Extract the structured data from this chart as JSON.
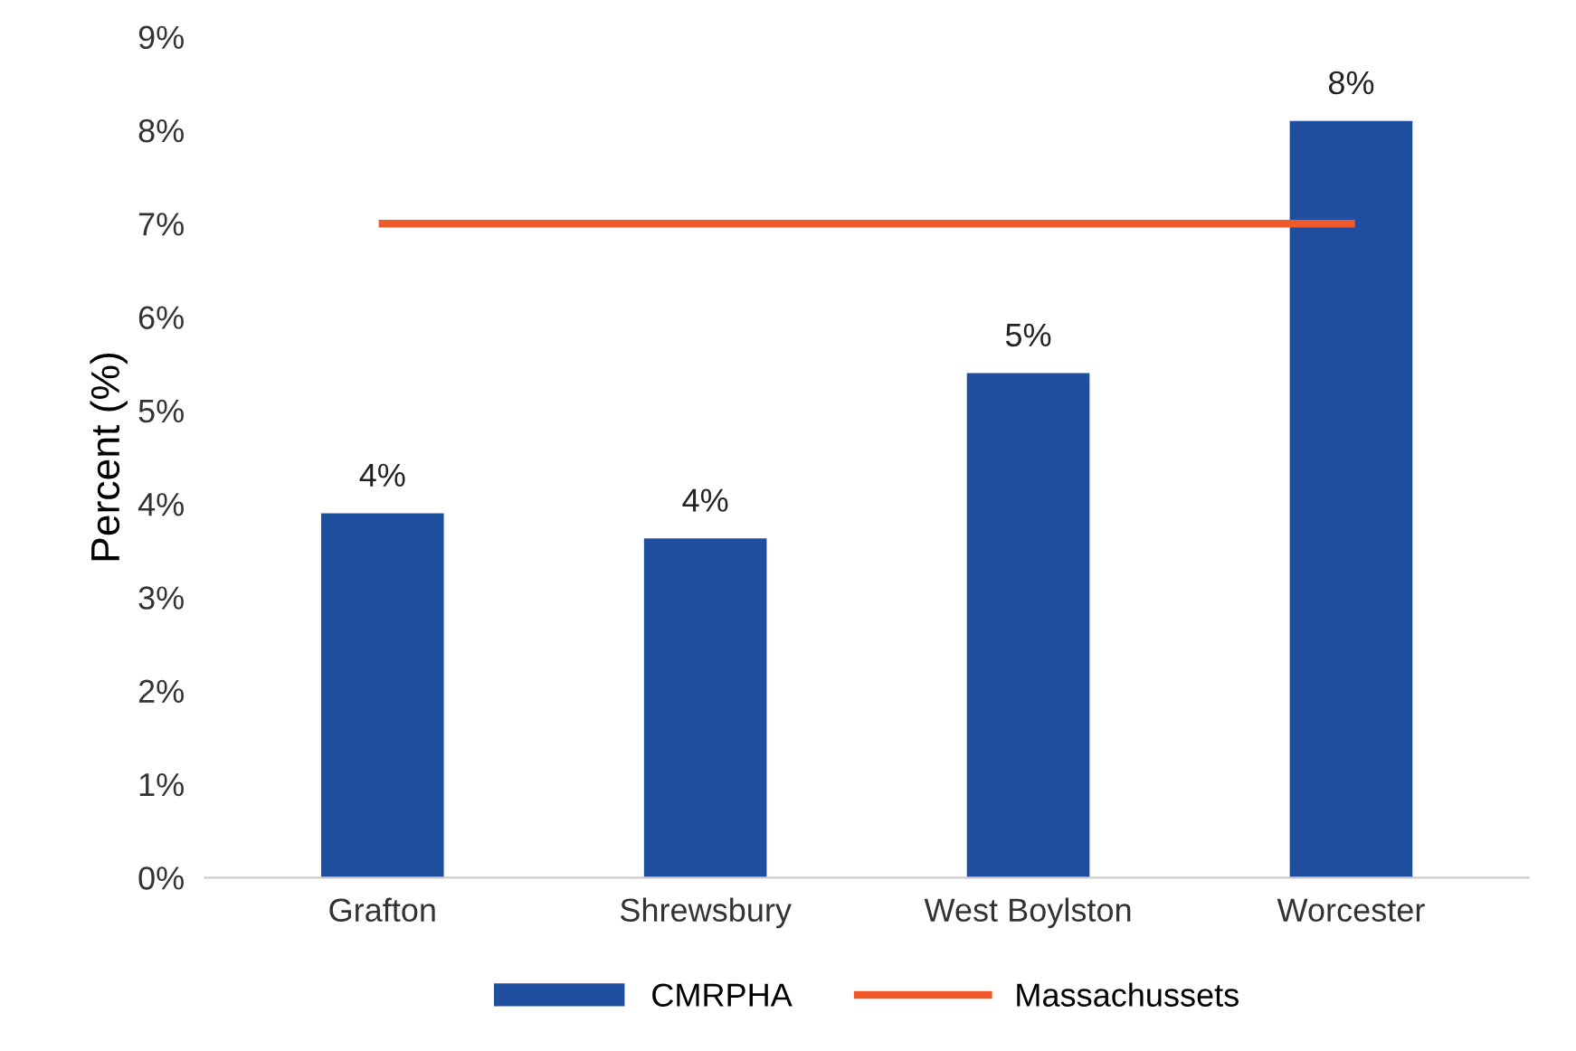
{
  "chart_data": {
    "type": "bar",
    "ylabel": "Percent (%)",
    "categories": [
      "Grafton",
      "Shrewsbury",
      "West Boylston",
      "Worcester"
    ],
    "series": [
      {
        "name": "CMRPHA",
        "color": "#1f4e9e",
        "values": [
          3.9,
          3.63,
          5.4,
          8.1
        ],
        "value_labels": [
          "4%",
          "4%",
          "5%",
          "8%"
        ]
      },
      {
        "name": "Massachussets",
        "type": "line",
        "color": "#f05a2a",
        "values": [
          7.0,
          7.0,
          7.0,
          7.0
        ]
      }
    ],
    "ylim": [
      0,
      9
    ],
    "yticks": [
      {
        "value": 0,
        "label": "0%"
      },
      {
        "value": 1,
        "label": "1%"
      },
      {
        "value": 2,
        "label": "2%"
      },
      {
        "value": 3,
        "label": "3%"
      },
      {
        "value": 4,
        "label": "4%"
      },
      {
        "value": 5,
        "label": "5%"
      },
      {
        "value": 6,
        "label": "6%"
      },
      {
        "value": 7,
        "label": "7%"
      },
      {
        "value": 8,
        "label": "8%"
      },
      {
        "value": 9,
        "label": "9%"
      }
    ],
    "grid": false,
    "legend": "bottom"
  }
}
